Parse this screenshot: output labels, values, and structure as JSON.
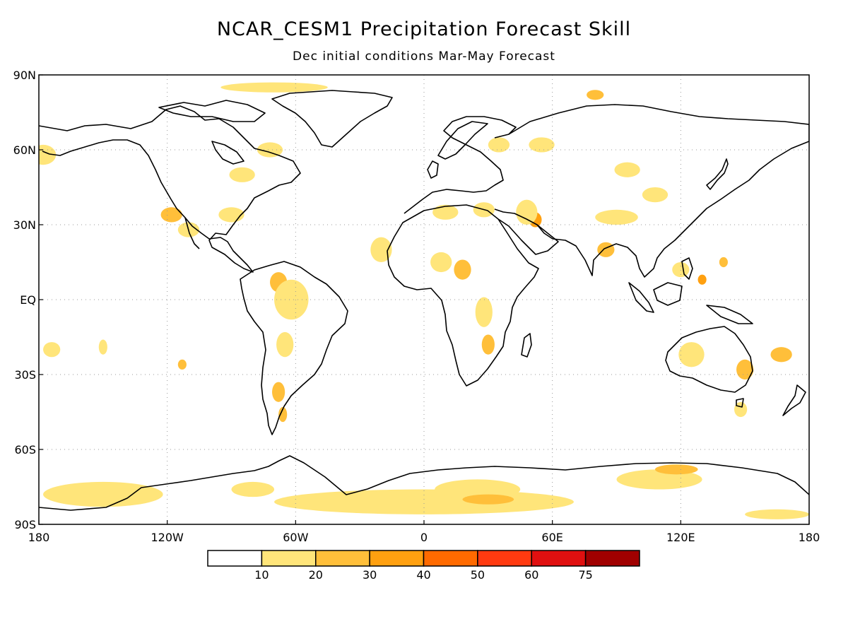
{
  "title": "NCAR_CESM1 Precipitation Forecast Skill",
  "subtitle": "Dec initial conditions  Mar-May Forecast",
  "map": {
    "lon_range": [
      -180,
      180
    ],
    "lat_range": [
      -90,
      90
    ],
    "lat_ticks": [
      {
        "value": 90,
        "label": "90N"
      },
      {
        "value": 60,
        "label": "60N"
      },
      {
        "value": 30,
        "label": "30N"
      },
      {
        "value": 0,
        "label": "EQ"
      },
      {
        "value": -30,
        "label": "30S"
      },
      {
        "value": -60,
        "label": "60S"
      },
      {
        "value": -90,
        "label": "90S"
      }
    ],
    "lon_ticks": [
      {
        "value": -180,
        "label": "180"
      },
      {
        "value": -120,
        "label": "120W"
      },
      {
        "value": -60,
        "label": "60W"
      },
      {
        "value": 0,
        "label": "0"
      },
      {
        "value": 60,
        "label": "60E"
      },
      {
        "value": 120,
        "label": "120E"
      },
      {
        "value": 180,
        "label": "180"
      }
    ],
    "gridlines": "dotted"
  },
  "colorbar": {
    "colors": [
      "#ffffff",
      "#ffe57a",
      "#ffbf3a",
      "#ffa010",
      "#ff6a00",
      "#ff3a10",
      "#e01010",
      "#a00000"
    ],
    "labels": [
      "10",
      "20",
      "30",
      "40",
      "50",
      "60",
      "75"
    ]
  },
  "skill_areas": [
    {
      "lon": -118,
      "lat": 34,
      "rx": 5,
      "ry": 3,
      "level": 2
    },
    {
      "lon": -110,
      "lat": 28,
      "rx": 5,
      "ry": 3,
      "level": 1
    },
    {
      "lon": -90,
      "lat": 34,
      "rx": 6,
      "ry": 3,
      "level": 1
    },
    {
      "lon": -85,
      "lat": 50,
      "rx": 6,
      "ry": 3,
      "level": 1
    },
    {
      "lon": -72,
      "lat": 60,
      "rx": 6,
      "ry": 3,
      "level": 1
    },
    {
      "lon": -70,
      "lat": 85,
      "rx": 25,
      "ry": 2,
      "level": 1
    },
    {
      "lon": -68,
      "lat": 7,
      "rx": 4,
      "ry": 4,
      "level": 2
    },
    {
      "lon": -62,
      "lat": 0,
      "rx": 8,
      "ry": 8,
      "level": 1
    },
    {
      "lon": -65,
      "lat": -18,
      "rx": 4,
      "ry": 5,
      "level": 1
    },
    {
      "lon": -68,
      "lat": -37,
      "rx": 3,
      "ry": 4,
      "level": 2
    },
    {
      "lon": -66,
      "lat": -46,
      "rx": 2,
      "ry": 3,
      "level": 2
    },
    {
      "lon": -174,
      "lat": -20,
      "rx": 4,
      "ry": 3,
      "level": 1
    },
    {
      "lon": -150,
      "lat": -19,
      "rx": 2,
      "ry": 3,
      "level": 1
    },
    {
      "lon": -113,
      "lat": -26,
      "rx": 2,
      "ry": 2,
      "level": 2
    },
    {
      "lon": -178,
      "lat": 58,
      "rx": 6,
      "ry": 4,
      "level": 1
    },
    {
      "lon": -20,
      "lat": 20,
      "rx": 5,
      "ry": 5,
      "level": 1
    },
    {
      "lon": 8,
      "lat": 15,
      "rx": 5,
      "ry": 4,
      "level": 1
    },
    {
      "lon": 18,
      "lat": 12,
      "rx": 4,
      "ry": 4,
      "level": 2
    },
    {
      "lon": 28,
      "lat": -5,
      "rx": 4,
      "ry": 6,
      "level": 1
    },
    {
      "lon": 30,
      "lat": -18,
      "rx": 3,
      "ry": 4,
      "level": 2
    },
    {
      "lon": 10,
      "lat": 35,
      "rx": 6,
      "ry": 3,
      "level": 1
    },
    {
      "lon": 28,
      "lat": 36,
      "rx": 5,
      "ry": 3,
      "level": 1
    },
    {
      "lon": 52,
      "lat": 32,
      "rx": 3,
      "ry": 3,
      "level": 3
    },
    {
      "lon": 48,
      "lat": 35,
      "rx": 5,
      "ry": 5,
      "level": 1
    },
    {
      "lon": 35,
      "lat": 62,
      "rx": 5,
      "ry": 3,
      "level": 1
    },
    {
      "lon": 55,
      "lat": 62,
      "rx": 6,
      "ry": 3,
      "level": 1
    },
    {
      "lon": 80,
      "lat": 82,
      "rx": 4,
      "ry": 2,
      "level": 2
    },
    {
      "lon": 95,
      "lat": 52,
      "rx": 6,
      "ry": 3,
      "level": 1
    },
    {
      "lon": 108,
      "lat": 42,
      "rx": 6,
      "ry": 3,
      "level": 1
    },
    {
      "lon": 90,
      "lat": 33,
      "rx": 10,
      "ry": 3,
      "level": 1
    },
    {
      "lon": 85,
      "lat": 20,
      "rx": 4,
      "ry": 3,
      "level": 2
    },
    {
      "lon": 120,
      "lat": 12,
      "rx": 4,
      "ry": 3,
      "level": 1
    },
    {
      "lon": 130,
      "lat": 8,
      "rx": 2,
      "ry": 2,
      "level": 3
    },
    {
      "lon": 140,
      "lat": 15,
      "rx": 2,
      "ry": 2,
      "level": 2
    },
    {
      "lon": 125,
      "lat": -22,
      "rx": 6,
      "ry": 5,
      "level": 1
    },
    {
      "lon": 150,
      "lat": -28,
      "rx": 4,
      "ry": 4,
      "level": 2
    },
    {
      "lon": 167,
      "lat": -22,
      "rx": 5,
      "ry": 3,
      "level": 2
    },
    {
      "lon": 148,
      "lat": -44,
      "rx": 3,
      "ry": 3,
      "level": 1
    },
    {
      "lon": -150,
      "lat": -78,
      "rx": 28,
      "ry": 5,
      "level": 1
    },
    {
      "lon": -80,
      "lat": -76,
      "rx": 10,
      "ry": 3,
      "level": 1
    },
    {
      "lon": 0,
      "lat": -81,
      "rx": 70,
      "ry": 5,
      "level": 1
    },
    {
      "lon": 25,
      "lat": -76,
      "rx": 20,
      "ry": 4,
      "level": 1
    },
    {
      "lon": 30,
      "lat": -80,
      "rx": 12,
      "ry": 2,
      "level": 2
    },
    {
      "lon": 110,
      "lat": -72,
      "rx": 20,
      "ry": 4,
      "level": 1
    },
    {
      "lon": 118,
      "lat": -68,
      "rx": 10,
      "ry": 2,
      "level": 2
    },
    {
      "lon": 165,
      "lat": -86,
      "rx": 15,
      "ry": 2,
      "level": 1
    }
  ]
}
